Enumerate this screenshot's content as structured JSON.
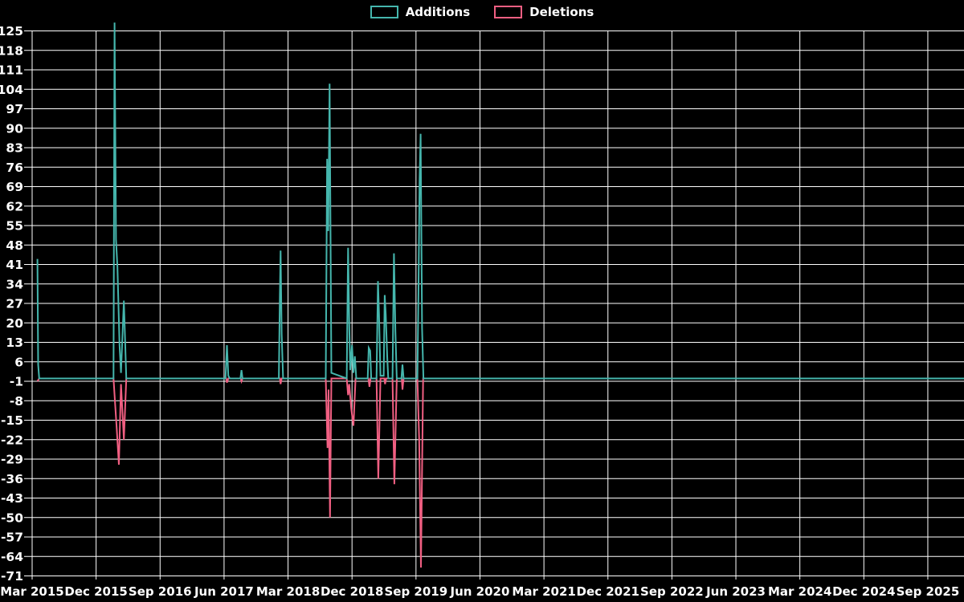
{
  "page": {
    "background": "#000000",
    "grid_color": "#ffffff",
    "text_color": "#ffffff"
  },
  "legend": {
    "items": [
      {
        "label": "Additions",
        "color": "#45b6ad"
      },
      {
        "label": "Deletions",
        "color": "#f15f82"
      }
    ]
  },
  "chart_data": {
    "type": "line",
    "title": "",
    "description": "Code additions and deletions over time; spikes of activity between 2015 and late 2019, flat at zero afterwards",
    "legend_position": "top-center",
    "background_color": "#000000",
    "grid": {
      "visible": true,
      "color": "#ffffff"
    },
    "x_axis": {
      "unit": "months since Mar 2015",
      "interval_months": 9,
      "labels": [
        "Mar 2015",
        "Dec 2015",
        "Sep 2016",
        "Jun 2017",
        "Mar 2018",
        "Dec 2018",
        "Sep 2019",
        "Jun 2020",
        "Mar 2021",
        "Dec 2021",
        "Sep 2022",
        "Jun 2023",
        "Mar 2024",
        "Dec 2024",
        "Sep 2025"
      ],
      "range_months": [
        0,
        131.2
      ]
    },
    "y_axis": {
      "min": -71,
      "max": 125,
      "step": 7,
      "ticks": [
        125,
        118,
        111,
        104,
        97,
        90,
        83,
        76,
        69,
        62,
        55,
        48,
        41,
        34,
        27,
        20,
        13,
        6,
        -1,
        -8,
        -15,
        -22,
        -29,
        -36,
        -43,
        -50,
        -57,
        -64,
        -71
      ]
    },
    "series": [
      {
        "name": "Additions",
        "color": "#45b6ad",
        "points": [
          [
            0.75,
            43
          ],
          [
            0.85,
            5
          ],
          [
            1.0,
            0
          ],
          [
            11.45,
            0
          ],
          [
            11.6,
            128
          ],
          [
            11.8,
            50
          ],
          [
            12.0,
            40
          ],
          [
            12.3,
            12
          ],
          [
            12.5,
            2
          ],
          [
            12.9,
            28
          ],
          [
            13.25,
            0
          ],
          [
            27.2,
            0
          ],
          [
            27.4,
            12
          ],
          [
            27.6,
            1
          ],
          [
            27.8,
            0
          ],
          [
            29.3,
            0
          ],
          [
            29.45,
            3
          ],
          [
            29.6,
            0
          ],
          [
            34.7,
            0
          ],
          [
            34.85,
            30
          ],
          [
            34.95,
            46
          ],
          [
            35.1,
            16
          ],
          [
            35.3,
            0
          ],
          [
            41.3,
            0
          ],
          [
            41.5,
            79
          ],
          [
            41.65,
            53
          ],
          [
            41.85,
            106
          ],
          [
            42.1,
            2
          ],
          [
            44.25,
            0
          ],
          [
            44.45,
            47
          ],
          [
            44.6,
            20
          ],
          [
            44.75,
            3
          ],
          [
            45.0,
            12
          ],
          [
            45.2,
            2
          ],
          [
            45.4,
            8
          ],
          [
            45.6,
            0
          ],
          [
            47.2,
            0
          ],
          [
            47.35,
            11
          ],
          [
            47.55,
            10
          ],
          [
            47.7,
            0
          ],
          [
            48.45,
            0
          ],
          [
            48.65,
            35
          ],
          [
            48.8,
            23
          ],
          [
            49.0,
            1
          ],
          [
            49.45,
            1
          ],
          [
            49.6,
            30
          ],
          [
            49.75,
            23
          ],
          [
            49.95,
            8
          ],
          [
            50.1,
            0
          ],
          [
            50.7,
            0
          ],
          [
            50.9,
            45
          ],
          [
            51.1,
            17
          ],
          [
            51.3,
            0
          ],
          [
            51.95,
            0
          ],
          [
            52.1,
            5
          ],
          [
            52.25,
            0
          ],
          [
            54.2,
            0
          ],
          [
            54.35,
            31
          ],
          [
            54.5,
            71
          ],
          [
            54.65,
            88
          ],
          [
            54.85,
            18
          ],
          [
            55.05,
            0
          ],
          [
            131.2,
            0
          ]
        ]
      },
      {
        "name": "Deletions",
        "color": "#f15f82",
        "points": [
          [
            0.75,
            -1
          ],
          [
            1.0,
            0
          ],
          [
            11.45,
            0
          ],
          [
            11.7,
            -10
          ],
          [
            11.9,
            -18
          ],
          [
            12.2,
            -31
          ],
          [
            12.5,
            -2
          ],
          [
            12.9,
            -22
          ],
          [
            13.25,
            0
          ],
          [
            27.3,
            0
          ],
          [
            27.4,
            -1.5
          ],
          [
            27.6,
            0
          ],
          [
            29.35,
            0
          ],
          [
            29.45,
            -1
          ],
          [
            29.6,
            0
          ],
          [
            34.85,
            0
          ],
          [
            34.95,
            -2
          ],
          [
            35.1,
            0
          ],
          [
            41.3,
            0
          ],
          [
            41.55,
            -25
          ],
          [
            41.7,
            -4
          ],
          [
            41.9,
            -50
          ],
          [
            42.1,
            0
          ],
          [
            44.25,
            0
          ],
          [
            44.45,
            -6
          ],
          [
            44.6,
            -2
          ],
          [
            44.9,
            -11
          ],
          [
            45.2,
            -17
          ],
          [
            45.5,
            0
          ],
          [
            47.3,
            0
          ],
          [
            47.45,
            -3
          ],
          [
            47.6,
            0
          ],
          [
            48.45,
            0
          ],
          [
            48.7,
            -36
          ],
          [
            49.0,
            0
          ],
          [
            49.55,
            0
          ],
          [
            49.65,
            -2
          ],
          [
            49.8,
            0
          ],
          [
            50.7,
            0
          ],
          [
            50.95,
            -38
          ],
          [
            51.3,
            0
          ],
          [
            52.0,
            0
          ],
          [
            52.1,
            -4
          ],
          [
            52.25,
            0
          ],
          [
            54.2,
            0
          ],
          [
            54.45,
            -22
          ],
          [
            54.7,
            -68
          ],
          [
            55.0,
            0
          ],
          [
            131.2,
            0
          ]
        ]
      }
    ]
  }
}
